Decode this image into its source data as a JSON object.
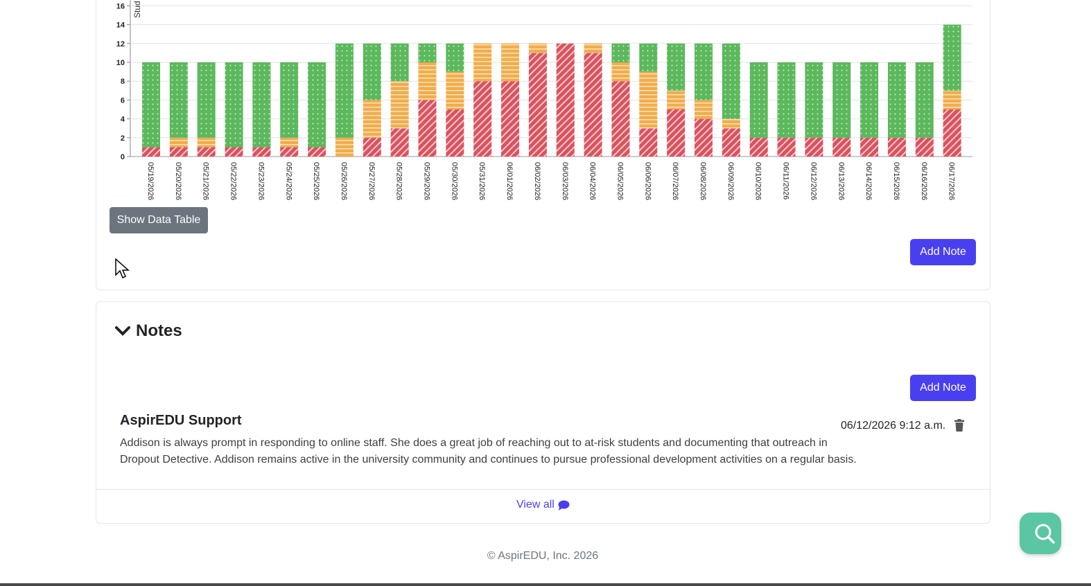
{
  "colors": {
    "red": "#d9535f",
    "orange": "#f0ad4e",
    "green": "#5cb85c",
    "primary": "#4a3ff0",
    "secondary": "#6c757d",
    "fab": "#5bc6a4"
  },
  "chart_data": {
    "type": "bar",
    "stacked": true,
    "ylabel": "Stud",
    "ylim": [
      0,
      16
    ],
    "yticks": [
      0,
      2,
      4,
      6,
      8,
      10,
      12,
      14,
      16
    ],
    "grid": true,
    "categories": [
      "05/19/2026",
      "05/20/2026",
      "05/21/2026",
      "05/22/2026",
      "05/23/2026",
      "05/24/2026",
      "05/25/2026",
      "05/26/2026",
      "05/27/2026",
      "05/28/2026",
      "05/29/2026",
      "05/30/2026",
      "05/31/2026",
      "06/01/2026",
      "06/02/2026",
      "06/03/2026",
      "06/04/2026",
      "06/05/2026",
      "06/06/2026",
      "06/07/2026",
      "06/08/2026",
      "06/09/2026",
      "06/10/2026",
      "06/11/2026",
      "06/12/2026",
      "06/13/2026",
      "06/14/2026",
      "06/15/2026",
      "06/16/2026",
      "06/17/2026"
    ],
    "series": [
      {
        "color": "red",
        "pattern": "diagonal-stripes",
        "values": [
          1,
          1,
          1,
          1,
          1,
          1,
          1,
          0,
          2,
          3,
          6,
          5,
          8,
          8,
          11,
          12,
          11,
          8,
          3,
          5,
          4,
          3,
          2,
          2,
          2,
          2,
          2,
          2,
          2,
          5
        ]
      },
      {
        "color": "orange",
        "pattern": "horizontal-stripes",
        "values": [
          0,
          1,
          1,
          0,
          0,
          1,
          0,
          2,
          4,
          5,
          4,
          4,
          4,
          4,
          1,
          0,
          1,
          2,
          6,
          2,
          2,
          1,
          0,
          0,
          0,
          0,
          0,
          0,
          0,
          2
        ]
      },
      {
        "color": "green",
        "pattern": "dots",
        "values": [
          9,
          8,
          8,
          9,
          9,
          8,
          9,
          10,
          6,
          4,
          2,
          3,
          0,
          0,
          0,
          0,
          0,
          2,
          3,
          5,
          6,
          8,
          8,
          8,
          8,
          8,
          8,
          8,
          8,
          7
        ]
      }
    ]
  },
  "chart_card": {
    "show_table_label": "Show Data Table",
    "add_note_label": "Add Note"
  },
  "notes": {
    "heading": "Notes",
    "add_note_label": "Add Note",
    "items": [
      {
        "author": "AspirEDU Support",
        "date": "06/12/2026 9:12 a.m.",
        "body": "Addison is always prompt in responding to online staff. She does a great job of reaching out to at-risk students and documenting that outreach in Dropout Detective. Addison remains active in the university community and continues to pursue professional development activities on a regular basis."
      }
    ],
    "view_all_label": "View all"
  },
  "footer": {
    "copyright": "© AspirEDU, Inc. 2026"
  },
  "icons": {
    "chevron": "chevron-down-icon",
    "trash": "trash-icon",
    "comment": "comment-icon",
    "search": "search-icon",
    "cursor": "cursor-icon"
  }
}
